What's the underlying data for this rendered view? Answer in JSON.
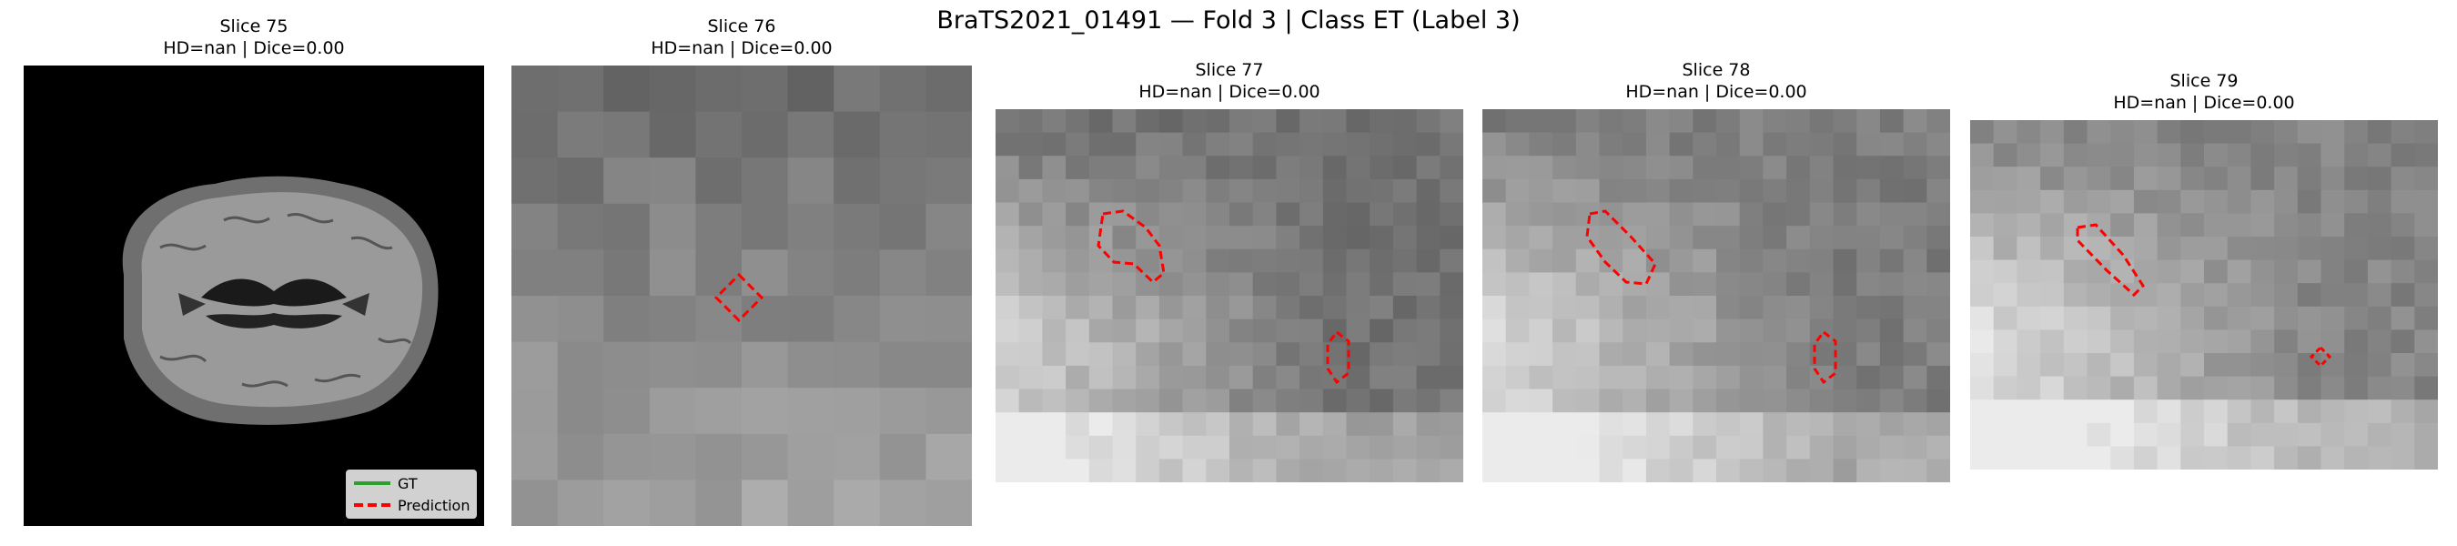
{
  "figure": {
    "suptitle": "BraTS2021_01491 — Fold 3 | Class ET (Label 3)"
  },
  "panels": [
    {
      "title": "Slice 75",
      "metrics": "HD=nan | Dice=0.00"
    },
    {
      "title": "Slice 76",
      "metrics": "HD=nan | Dice=0.00"
    },
    {
      "title": "Slice 77",
      "metrics": "HD=nan | Dice=0.00"
    },
    {
      "title": "Slice 78",
      "metrics": "HD=nan | Dice=0.00"
    },
    {
      "title": "Slice 79",
      "metrics": "HD=nan | Dice=0.00"
    }
  ],
  "legend": {
    "gt_label": "GT",
    "gt_color": "#2ca02c",
    "pred_label": "Prediction",
    "pred_color": "#ff0000"
  }
}
